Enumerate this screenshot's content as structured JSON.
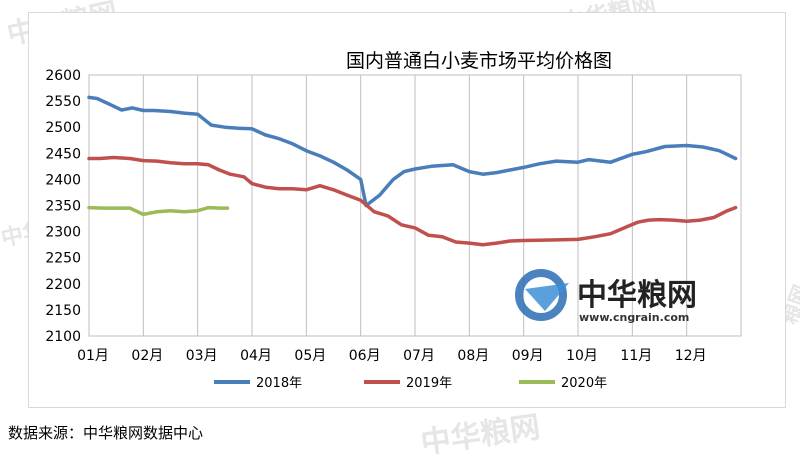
{
  "chart_data": {
    "type": "line",
    "title": "国内普通白小麦市场平均价格图",
    "x_labels": [
      "01月",
      "02月",
      "03月",
      "04月",
      "05月",
      "06月",
      "07月",
      "08月",
      "09月",
      "10月",
      "11月",
      "12月"
    ],
    "ylim": [
      2100,
      2600
    ],
    "yticks": [
      2100,
      2150,
      2200,
      2250,
      2300,
      2350,
      2400,
      2450,
      2500,
      2550,
      2600
    ],
    "grid": "vertical",
    "legend_position": "bottom",
    "series": [
      {
        "name": "2018年",
        "color": "#4a7ebb",
        "x": [
          1.0,
          1.15,
          1.4,
          1.6,
          1.8,
          2.0,
          2.2,
          2.5,
          2.75,
          3.0,
          3.25,
          3.5,
          3.75,
          4.0,
          4.25,
          4.5,
          4.75,
          5.0,
          5.25,
          5.5,
          5.75,
          6.0,
          6.1,
          6.35,
          6.6,
          6.8,
          7.0,
          7.3,
          7.7,
          8.0,
          8.25,
          8.5,
          8.75,
          9.0,
          9.3,
          9.6,
          10.0,
          10.2,
          10.6,
          11.0,
          11.25,
          11.6,
          12.0,
          12.3,
          12.6,
          12.9
        ],
        "values": [
          2557,
          2555,
          2543,
          2533,
          2537,
          2532,
          2532,
          2530,
          2527,
          2525,
          2504,
          2500,
          2498,
          2497,
          2485,
          2478,
          2468,
          2455,
          2445,
          2433,
          2418,
          2400,
          2350,
          2370,
          2400,
          2415,
          2420,
          2425,
          2428,
          2415,
          2410,
          2413,
          2418,
          2423,
          2430,
          2435,
          2433,
          2438,
          2433,
          2448,
          2453,
          2463,
          2465,
          2462,
          2455,
          2440
        ]
      },
      {
        "name": "2019年",
        "color": "#c0504d",
        "x": [
          1.0,
          1.2,
          1.45,
          1.75,
          2.0,
          2.25,
          2.5,
          2.75,
          3.0,
          3.2,
          3.4,
          3.6,
          3.85,
          4.0,
          4.25,
          4.5,
          4.75,
          5.0,
          5.25,
          5.5,
          5.75,
          6.0,
          6.25,
          6.5,
          6.75,
          7.0,
          7.25,
          7.5,
          7.75,
          8.0,
          8.25,
          8.5,
          8.75,
          9.0,
          9.5,
          10.0,
          10.3,
          10.6,
          10.85,
          11.1,
          11.3,
          11.5,
          11.75,
          12.0,
          12.25,
          12.5,
          12.75,
          12.9
        ],
        "values": [
          2440,
          2440,
          2442,
          2440,
          2436,
          2435,
          2432,
          2430,
          2430,
          2428,
          2418,
          2410,
          2405,
          2392,
          2385,
          2382,
          2382,
          2380,
          2388,
          2380,
          2370,
          2360,
          2338,
          2330,
          2313,
          2307,
          2293,
          2290,
          2280,
          2278,
          2275,
          2278,
          2282,
          2283,
          2284,
          2285,
          2290,
          2296,
          2307,
          2318,
          2322,
          2323,
          2322,
          2320,
          2322,
          2327,
          2340,
          2346
        ]
      },
      {
        "name": "2020年",
        "color": "#9bbb59",
        "x": [
          1.0,
          1.25,
          1.5,
          1.75,
          2.0,
          2.25,
          2.5,
          2.75,
          3.0,
          3.2,
          3.4,
          3.55
        ],
        "values": [
          2346,
          2345,
          2345,
          2345,
          2333,
          2338,
          2340,
          2338,
          2340,
          2346,
          2345,
          2345
        ]
      }
    ]
  },
  "watermark": {
    "brand_cn": "中华粮网",
    "brand_url": "www.cngrain.com"
  },
  "source_note": "数据来源：中华粮网数据中心"
}
